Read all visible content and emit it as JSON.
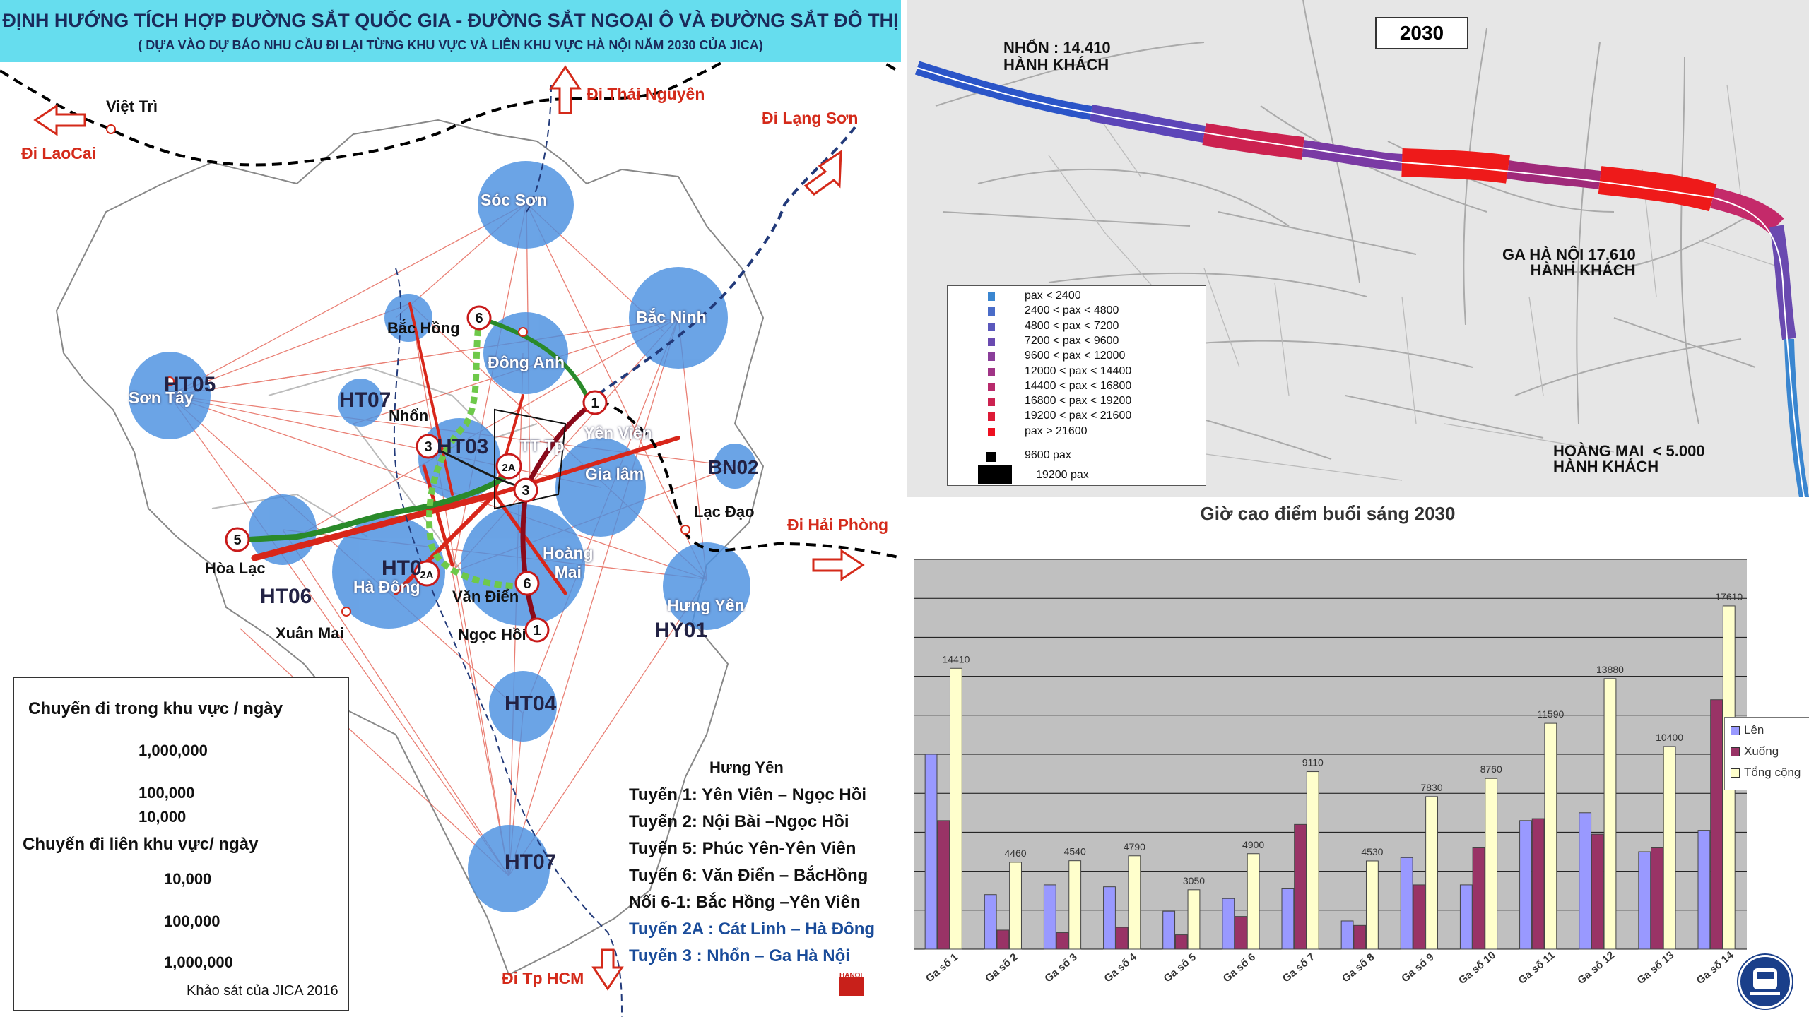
{
  "left_map": {
    "title": "ĐỊNH HƯỚNG TÍCH HỢP ĐƯỜNG SẮT QUỐC GIA - ĐƯỜNG SẮT NGOẠI Ô VÀ ĐƯỜNG SẮT ĐÔ THỊ",
    "subtitle": "( DỰA VÀO DỰ BÁO NHU CẦU ĐI LẠI TỪNG KHU VỰC VÀ LIÊN KHU VỰC  HÀ NỘI NĂM 2030 CỦA JICA)",
    "directions": {
      "laocai": "Đi LaoCai",
      "thainguyen": "Đi Thái Nguyên",
      "langson": "Đi Lạng Sơn",
      "haiphong": "Đi Hải Phòng",
      "hcm": "Đi Tp HCM"
    },
    "places": {
      "viettri": "Việt Trì",
      "socson": "Sóc Sơn",
      "bachong": "Bắc Hồng",
      "bacninh": "Bắc Ninh",
      "dongan": "Đông Anh",
      "sontay": "Sơn Tây",
      "ht05": "HT05",
      "ht07a": "HT07",
      "nhon": "Nhổn",
      "ttp": "TT Tp",
      "yenvien": "Yên Viên",
      "gialam": "Gia lâm",
      "bn02": "BN02",
      "lacdao": "Lạc Đạo",
      "hoalac": "Hòa Lạc",
      "ht06": "HT06",
      "hadong": "Hà Đông",
      "ht01": "HT0",
      "vandien": "Văn Điển",
      "hoangmai": "Hoàng\nMai",
      "hungyen": "Hưng Yên",
      "hy01": "HY01",
      "xuanmai": "Xuân Mai",
      "ngochoi": "Ngọc Hồi",
      "ht04": "HT04",
      "ht07b": "HT07",
      "hungyen2": "Hưng Yên",
      "ht03": "HT03"
    },
    "stations": [
      "6",
      "1",
      "3",
      "2A",
      "3",
      "5",
      "2A",
      "6",
      "1"
    ],
    "routes": [
      "Tuyến 1:  Yên Viên – Ngọc Hồi",
      "Tuyến 2:     Nội Bài –Ngọc Hồi",
      "Tuyến 5:     Phúc Yên-Yên Viên",
      "Tuyến 6:  Văn Điển – BắcHồng",
      "Nối 6-1:   Bắc Hồng –Yên Viên",
      "Tuyến 2A : Cát Linh – Hà Đông",
      "Tuyến 3 :       Nhổn – Ga Hà Nội"
    ],
    "legend": {
      "title1": "Chuyến đi trong  khu vực / ngày",
      "v1": "1,000,000",
      "v2": "100,000",
      "v3": "10,000",
      "title2": "Chuyến đi liên khu vực/ ngày",
      "l1": "10,000",
      "l2": "100,000",
      "l3": "1,000,000"
    },
    "source": "Khảo sát của JICA 2016",
    "logo_text": "HANOI"
  },
  "right_map": {
    "year": "2030",
    "nhon": "NHỔN : 14.410\nHÀNH KHÁCH",
    "gahanoi": "GA HÀ NỘI 17.610\nHÀNH KHÁCH",
    "hoangmai": "HOÀNG MAI  < 5.000\nHÀNH KHÁCH",
    "legend": [
      {
        "label": "pax < 2400",
        "color": "#3a86d0"
      },
      {
        "label": "2400 < pax < 4800",
        "color": "#4a6cc8"
      },
      {
        "label": "4800 < pax < 7200",
        "color": "#5a58bc"
      },
      {
        "label": "7200 < pax < 9600",
        "color": "#6a4ab0"
      },
      {
        "label": "9600 < pax < 12000",
        "color": "#8a3e9a"
      },
      {
        "label": "12000 < pax < 14400",
        "color": "#a03486"
      },
      {
        "label": "14400 < pax < 16800",
        "color": "#b82a6c"
      },
      {
        "label": "16800 < pax < 19200",
        "color": "#cc2250"
      },
      {
        "label": "19200 < pax < 21600",
        "color": "#dd1a36"
      },
      {
        "label": "pax > 21600",
        "color": "#ee1020"
      },
      {
        "label": "9600 pax",
        "color": "#000000"
      },
      {
        "label": "19200 pax",
        "color": "#000000"
      }
    ]
  },
  "chart_data": {
    "type": "bar",
    "title": "Giờ cao điểm buổi sáng 2030",
    "categories": [
      "Ga số 1",
      "Ga số 2",
      "Ga số 3",
      "Ga số 4",
      "Ga số 5",
      "Ga số 6",
      "Ga số 7",
      "Ga số 8",
      "Ga số 9",
      "Ga số 10",
      "Ga số 11",
      "Ga số 12",
      "Ga số 13",
      "Ga số 14"
    ],
    "series": [
      {
        "name": "Lên",
        "color": "#9999ff",
        "values": [
          10000,
          2800,
          3300,
          3200,
          1950,
          2600,
          3100,
          1450,
          4700,
          3300,
          6600,
          7000,
          5000,
          6100
        ]
      },
      {
        "name": "Xuống",
        "color": "#993366",
        "values": [
          6600,
          980,
          850,
          1120,
          740,
          1680,
          6400,
          1220,
          3300,
          5200,
          6700,
          5900,
          5200,
          12800
        ]
      },
      {
        "name": "Tổng cộng",
        "color": "#ffffcc",
        "values": [
          14410,
          4460,
          4540,
          4790,
          3050,
          4900,
          9110,
          4530,
          7830,
          8760,
          11590,
          13880,
          10400,
          17610
        ]
      }
    ],
    "data_labels": [
      "14410",
      "4460",
      "4540",
      "4790",
      "3050",
      "4900",
      "9110",
      "4530",
      "7830",
      "8760",
      "11590",
      "13880",
      "10400",
      "17610"
    ],
    "ylim": [
      0,
      20000
    ],
    "grid": true,
    "legend": "right"
  },
  "colors": {
    "banner": "#66ddee",
    "zone": "#4a90e0",
    "trip": "#d42a1a"
  }
}
